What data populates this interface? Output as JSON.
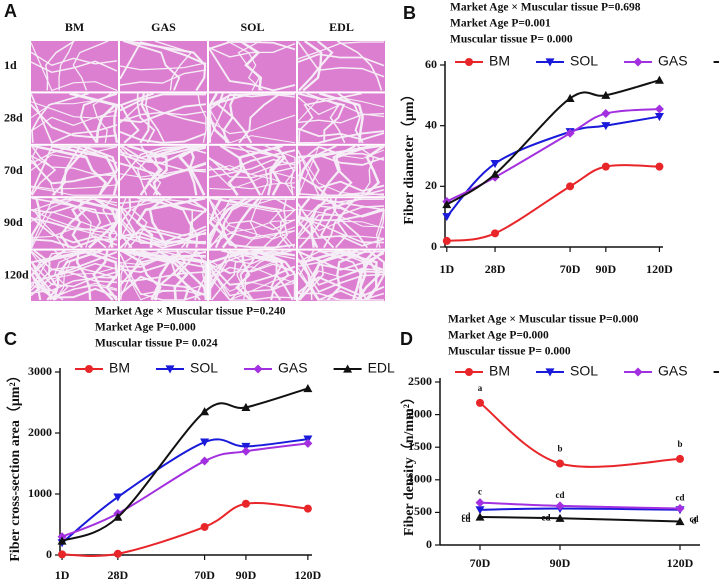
{
  "panel_a": {
    "label": "A",
    "columns": [
      "BM",
      "GAS",
      "SOL",
      "EDL"
    ],
    "rows": [
      "1d",
      "28d",
      "70d",
      "90d",
      "120d"
    ]
  },
  "chart_data": [
    {
      "type": "line",
      "panel_label": "B",
      "annotations": [
        "Market Age × Muscular tissue P=0.698",
        "Market Age P=0.001",
        "Muscular tissue P= 0.000"
      ],
      "y_label": "Fiber diameter（μm）",
      "x": [
        1,
        28,
        70,
        90,
        120
      ],
      "xlim": [
        0,
        122
      ],
      "xticks": [
        {
          "value": 1,
          "label": "1D"
        },
        {
          "value": 28,
          "label": "28D"
        },
        {
          "value": 70,
          "label": "70D"
        },
        {
          "value": 90,
          "label": "90D"
        },
        {
          "value": 120,
          "label": "120D"
        }
      ],
      "ylim": [
        0,
        60
      ],
      "yticks": [
        0,
        20,
        40,
        60
      ],
      "series": [
        {
          "name": "BM",
          "color": "#e8262a",
          "marker": "circle",
          "values": [
            2,
            4.5,
            20,
            26.5,
            26.5
          ]
        },
        {
          "name": "SOL",
          "color": "#1a1adb",
          "marker": "triangle-down",
          "values": [
            10,
            27.5,
            38,
            40,
            43
          ]
        },
        {
          "name": "GAS",
          "color": "#a330e0",
          "marker": "diamond",
          "values": [
            15,
            23,
            37.5,
            44,
            45.5
          ]
        },
        {
          "name": "EDL",
          "color": "#111111",
          "marker": "triangle-up",
          "values": [
            14,
            24,
            49,
            50,
            55
          ]
        }
      ]
    },
    {
      "type": "line",
      "panel_label": "C",
      "annotations": [
        "Market Age × Muscular tissue P=0.240",
        "Market Age P=0.000",
        "Muscular tissue P= 0.024"
      ],
      "y_label": "Fiber cross-section area（μm²）",
      "x": [
        1,
        28,
        70,
        90,
        120
      ],
      "xlim": [
        0,
        122
      ],
      "xticks": [
        {
          "value": 1,
          "label": "1D"
        },
        {
          "value": 28,
          "label": "28D"
        },
        {
          "value": 70,
          "label": "70D"
        },
        {
          "value": 90,
          "label": "90D"
        },
        {
          "value": 120,
          "label": "120D"
        }
      ],
      "ylim": [
        0,
        3000
      ],
      "yticks": [
        0,
        1000,
        2000,
        3000
      ],
      "series": [
        {
          "name": "BM",
          "color": "#e8262a",
          "marker": "circle",
          "values": [
            10,
            20,
            460,
            840,
            760
          ]
        },
        {
          "name": "SOL",
          "color": "#1a1adb",
          "marker": "triangle-down",
          "values": [
            200,
            950,
            1850,
            1780,
            1900
          ]
        },
        {
          "name": "GAS",
          "color": "#a330e0",
          "marker": "diamond",
          "values": [
            300,
            680,
            1540,
            1700,
            1830
          ]
        },
        {
          "name": "EDL",
          "color": "#111111",
          "marker": "triangle-up",
          "values": [
            230,
            620,
            2350,
            2420,
            2730
          ]
        }
      ]
    },
    {
      "type": "line",
      "panel_label": "D",
      "annotations": [
        "Market Age × Muscular tissue P=0.000",
        "Market Age P=0.000",
        "Muscular tissue P= 0.000"
      ],
      "y_label": "Fiber density（n/mm²）",
      "x": [
        70,
        90,
        120
      ],
      "xlim": [
        60,
        125
      ],
      "xticks": [
        {
          "value": 70,
          "label": "70D"
        },
        {
          "value": 90,
          "label": "90D"
        },
        {
          "value": 120,
          "label": "120D"
        }
      ],
      "ylim": [
        0,
        2500
      ],
      "yticks": [
        0,
        500,
        1000,
        1500,
        2000,
        2500
      ],
      "series": [
        {
          "name": "BM",
          "color": "#e8262a",
          "marker": "circle",
          "values": [
            2180,
            1250,
            1320
          ],
          "letters": [
            "a",
            "b",
            "b"
          ]
        },
        {
          "name": "SOL",
          "color": "#1a1adb",
          "marker": "triangle-down",
          "values": [
            540,
            560,
            540
          ],
          "letters": [
            "cd",
            "cd",
            "cd"
          ]
        },
        {
          "name": "GAS",
          "color": "#a330e0",
          "marker": "diamond",
          "values": [
            650,
            600,
            560
          ],
          "letters": [
            "c",
            "cd",
            "cd"
          ]
        },
        {
          "name": "EDL",
          "color": "#111111",
          "marker": "triangle-up",
          "values": [
            430,
            410,
            360
          ],
          "letters": [
            "cd",
            "cd",
            "d"
          ]
        }
      ]
    }
  ]
}
